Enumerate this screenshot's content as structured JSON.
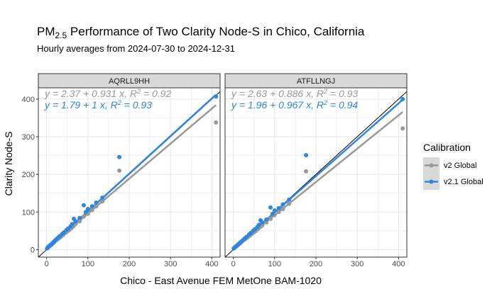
{
  "chart_data": {
    "type": "scatter",
    "title": {
      "prefix": "PM",
      "subscript": "2.5",
      "suffix": " Performance of Two Clarity Node-S in Chico, California"
    },
    "subtitle": "Hourly averages from 2024-07-30 to 2024-12-31",
    "xlabel": "Chico - East Avenue FEM MetOne BAM-1020",
    "ylabel": "Clarity Node-S",
    "xlim": [
      -20,
      420
    ],
    "ylim": [
      -20,
      430
    ],
    "x_ticks": [
      0,
      100,
      200,
      300,
      400
    ],
    "y_ticks": [
      0,
      100,
      200,
      300,
      400
    ],
    "grid": true,
    "legend": {
      "title": "Calibration",
      "position": "right",
      "entries": [
        {
          "label": "v2 Global",
          "color": "#999999"
        },
        {
          "label": "v2.1 Global",
          "color": "#2E86DE"
        }
      ]
    },
    "reference_line": "y = x",
    "panels": [
      {
        "name": "AQRLL9HH",
        "fits": [
          {
            "series": "v2 Global",
            "color": "#999999",
            "intercept": 2.37,
            "slope": 0.931,
            "r2": 0.92,
            "eq_parts": [
              "y = 2.37 + 0.931 x, R",
              "2",
              " = 0.92"
            ]
          },
          {
            "series": "v2.1 Global",
            "color": "#2E86DE",
            "intercept": 1.79,
            "slope": 1,
            "r2": 0.93,
            "eq_parts": [
              "y = 1.79 + 1 x, R",
              "2",
              " = 0.93"
            ]
          }
        ],
        "series": [
          {
            "name": "v2 Global",
            "color": "#999999",
            "points": [
              [
                2,
                4
              ],
              [
                4,
                6
              ],
              [
                6,
                8
              ],
              [
                8,
                10
              ],
              [
                10,
                12
              ],
              [
                12,
                13
              ],
              [
                15,
                16
              ],
              [
                18,
                19
              ],
              [
                20,
                22
              ],
              [
                25,
                26
              ],
              [
                30,
                30
              ],
              [
                35,
                34
              ],
              [
                40,
                39
              ],
              [
                45,
                44
              ],
              [
                50,
                48
              ],
              [
                55,
                52
              ],
              [
                60,
                57
              ],
              [
                65,
                62
              ],
              [
                70,
                68
              ],
              [
                80,
                75
              ],
              [
                90,
                88
              ],
              [
                100,
                95
              ],
              [
                110,
                105
              ],
              [
                120,
                115
              ],
              [
                135,
                128
              ],
              [
                176,
                210
              ],
              [
                410,
                338
              ]
            ]
          },
          {
            "name": "v2.1 Global",
            "color": "#2E86DE",
            "points": [
              [
                1,
                3
              ],
              [
                3,
                6
              ],
              [
                5,
                8
              ],
              [
                7,
                10
              ],
              [
                9,
                12
              ],
              [
                11,
                14
              ],
              [
                14,
                17
              ],
              [
                17,
                20
              ],
              [
                20,
                24
              ],
              [
                24,
                28
              ],
              [
                28,
                32
              ],
              [
                32,
                36
              ],
              [
                38,
                42
              ],
              [
                42,
                46
              ],
              [
                48,
                52
              ],
              [
                52,
                56
              ],
              [
                58,
                62
              ],
              [
                62,
                68
              ],
              [
                66,
                82
              ],
              [
                70,
                75
              ],
              [
                80,
                84
              ],
              [
                90,
                118
              ],
              [
                95,
                100
              ],
              [
                100,
                108
              ],
              [
                110,
                115
              ],
              [
                120,
                125
              ],
              [
                135,
                138
              ],
              [
                176,
                246
              ],
              [
                410,
                407
              ]
            ]
          }
        ]
      },
      {
        "name": "ATFLLNGJ",
        "fits": [
          {
            "series": "v2 Global",
            "color": "#999999",
            "intercept": 2.63,
            "slope": 0.886,
            "r2": 0.93,
            "eq_parts": [
              "y = 2.63 + 0.886 x, R",
              "2",
              " = 0.93"
            ]
          },
          {
            "series": "v2.1 Global",
            "color": "#2E86DE",
            "intercept": 1.96,
            "slope": 0.967,
            "r2": 0.94,
            "eq_parts": [
              "y = 1.96 + 0.967 x, R",
              "2",
              " = 0.94"
            ]
          }
        ],
        "series": [
          {
            "name": "v2 Global",
            "color": "#999999",
            "points": [
              [
                2,
                4
              ],
              [
                4,
                6
              ],
              [
                6,
                8
              ],
              [
                8,
                10
              ],
              [
                10,
                11
              ],
              [
                12,
                13
              ],
              [
                15,
                16
              ],
              [
                18,
                18
              ],
              [
                20,
                21
              ],
              [
                25,
                25
              ],
              [
                30,
                29
              ],
              [
                35,
                33
              ],
              [
                40,
                37
              ],
              [
                45,
                42
              ],
              [
                50,
                46
              ],
              [
                55,
                50
              ],
              [
                60,
                55
              ],
              [
                65,
                60
              ],
              [
                70,
                64
              ],
              [
                80,
                72
              ],
              [
                90,
                82
              ],
              [
                100,
                92
              ],
              [
                110,
                100
              ],
              [
                120,
                108
              ],
              [
                135,
                122
              ],
              [
                176,
                208
              ],
              [
                410,
                322
              ]
            ]
          },
          {
            "name": "v2.1 Global",
            "color": "#2E86DE",
            "points": [
              [
                1,
                3
              ],
              [
                3,
                5
              ],
              [
                5,
                7
              ],
              [
                7,
                9
              ],
              [
                9,
                11
              ],
              [
                11,
                13
              ],
              [
                14,
                16
              ],
              [
                17,
                19
              ],
              [
                20,
                22
              ],
              [
                24,
                26
              ],
              [
                28,
                30
              ],
              [
                32,
                34
              ],
              [
                38,
                40
              ],
              [
                42,
                44
              ],
              [
                48,
                50
              ],
              [
                52,
                54
              ],
              [
                58,
                60
              ],
              [
                62,
                66
              ],
              [
                66,
                78
              ],
              [
                70,
                72
              ],
              [
                80,
                80
              ],
              [
                90,
                112
              ],
              [
                95,
                95
              ],
              [
                100,
                104
              ],
              [
                110,
                110
              ],
              [
                120,
                120
              ],
              [
                135,
                133
              ],
              [
                176,
                251
              ],
              [
                410,
                400
              ]
            ]
          }
        ]
      }
    ]
  }
}
